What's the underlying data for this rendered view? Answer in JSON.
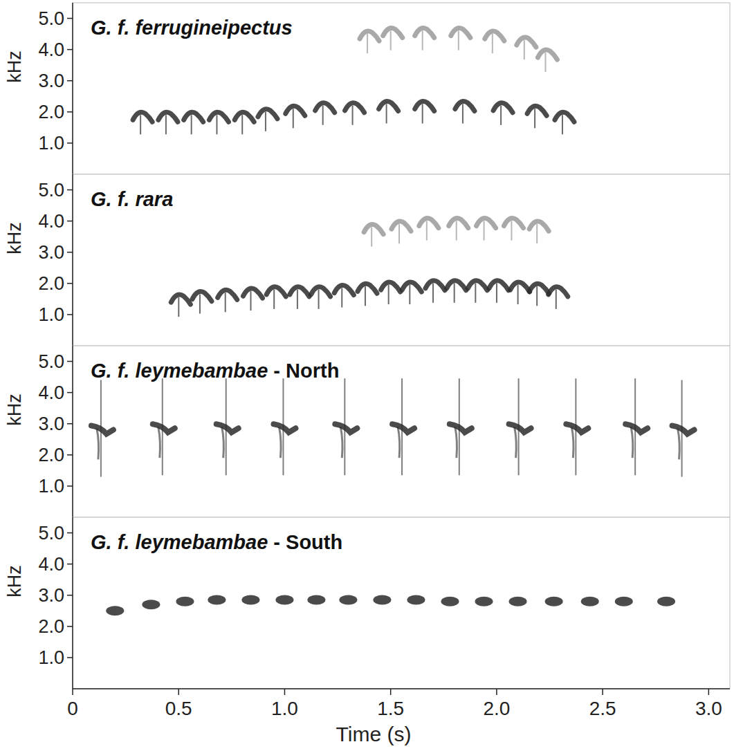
{
  "chart_data": [
    {
      "type": "spectrogram",
      "title": "G. f. ferrugineipectus",
      "y_label": "kHz",
      "xlim": [
        0,
        3.1
      ],
      "ylim": [
        0,
        5.5
      ],
      "tick_labels": "y",
      "yticks": [
        {
          "value": 1,
          "label": "1.0"
        },
        {
          "value": 2,
          "label": "2.0"
        },
        {
          "value": 3,
          "label": "3.0"
        },
        {
          "value": 4,
          "label": "4.0"
        },
        {
          "value": 5,
          "label": "5.0"
        }
      ],
      "series": [
        {
          "color": "#2b2b2b",
          "marker": "arch",
          "x": [
            0.33,
            0.45,
            0.57,
            0.69,
            0.81,
            0.92,
            1.05,
            1.19,
            1.33,
            1.49,
            1.66,
            1.85,
            2.03,
            2.19,
            2.32
          ],
          "values": [
            1.9,
            1.9,
            1.9,
            1.9,
            1.9,
            2.0,
            2.1,
            2.2,
            2.2,
            2.25,
            2.25,
            2.25,
            2.2,
            2.1,
            1.9
          ]
        },
        {
          "color": "#9a9a9a",
          "marker": "arch",
          "x": [
            1.4,
            1.51,
            1.66,
            1.83,
            1.99,
            2.14,
            2.24
          ],
          "values": [
            4.5,
            4.6,
            4.6,
            4.6,
            4.5,
            4.3,
            3.9
          ]
        }
      ]
    },
    {
      "type": "spectrogram",
      "title": "G. f. rara",
      "y_label": "kHz",
      "xlim": [
        0,
        3.1
      ],
      "ylim": [
        0,
        5.5
      ],
      "tick_labels": "y",
      "yticks": [
        {
          "value": 1,
          "label": "1.0"
        },
        {
          "value": 2,
          "label": "2.0"
        },
        {
          "value": 3,
          "label": "3.0"
        },
        {
          "value": 4,
          "label": "4.0"
        },
        {
          "value": 5,
          "label": "5.0"
        }
      ],
      "series": [
        {
          "color": "#2b2b2b",
          "marker": "arch",
          "x": [
            0.51,
            0.61,
            0.73,
            0.85,
            0.96,
            1.07,
            1.17,
            1.28,
            1.39,
            1.5,
            1.6,
            1.71,
            1.81,
            1.91,
            2.01,
            2.11,
            2.2,
            2.29
          ],
          "values": [
            1.55,
            1.65,
            1.7,
            1.75,
            1.8,
            1.8,
            1.8,
            1.85,
            1.9,
            1.95,
            1.95,
            2.0,
            2.0,
            2.0,
            2.0,
            1.95,
            1.9,
            1.8
          ]
        },
        {
          "color": "#9a9a9a",
          "marker": "arch",
          "x": [
            1.42,
            1.55,
            1.68,
            1.82,
            1.95,
            2.08,
            2.2
          ],
          "values": [
            3.8,
            3.9,
            4.0,
            4.0,
            4.0,
            4.0,
            3.9
          ]
        }
      ]
    },
    {
      "type": "spectrogram",
      "title": "G. f. leymebambae - North",
      "y_label": "kHz",
      "xlim": [
        0,
        3.1
      ],
      "ylim": [
        0,
        5.5
      ],
      "tick_labels": "y",
      "yticks": [
        {
          "value": 1,
          "label": "1.0"
        },
        {
          "value": 2,
          "label": "2.0"
        },
        {
          "value": 3,
          "label": "3.0"
        },
        {
          "value": 4,
          "label": "4.0"
        },
        {
          "value": 5,
          "label": "5.0"
        }
      ],
      "series": [
        {
          "color": "#2b2b2b",
          "marker": "tee",
          "x": [
            0.14,
            0.43,
            0.73,
            1.0,
            1.29,
            1.56,
            1.83,
            2.11,
            2.38,
            2.66,
            2.88
          ],
          "values": [
            2.85,
            2.9,
            2.9,
            2.9,
            2.9,
            2.9,
            2.9,
            2.9,
            2.9,
            2.9,
            2.85
          ]
        }
      ]
    },
    {
      "type": "spectrogram",
      "title": "G. f. leymebambae - South",
      "y_label": "kHz",
      "x_label": "Time (s)",
      "xlim": [
        0,
        3.1
      ],
      "ylim": [
        0,
        5.5
      ],
      "xticks": [
        0,
        0.5,
        {
          "value": 1,
          "label": "1.0"
        },
        1.5,
        {
          "value": 2,
          "label": "2.0"
        },
        2.5,
        {
          "value": 3,
          "label": "3.0"
        }
      ],
      "yticks": [
        {
          "value": 1,
          "label": "1.0"
        },
        {
          "value": 2,
          "label": "2.0"
        },
        {
          "value": 3,
          "label": "3.0"
        },
        {
          "value": 4,
          "label": "4.0"
        },
        {
          "value": 5,
          "label": "5.0"
        }
      ],
      "series": [
        {
          "color": "#2b2b2b",
          "marker": "blob",
          "x": [
            0.2,
            0.37,
            0.53,
            0.68,
            0.84,
            1.0,
            1.15,
            1.3,
            1.46,
            1.62,
            1.78,
            1.94,
            2.1,
            2.27,
            2.44,
            2.6,
            2.8
          ],
          "values": [
            2.5,
            2.7,
            2.8,
            2.85,
            2.85,
            2.85,
            2.85,
            2.85,
            2.85,
            2.85,
            2.8,
            2.8,
            2.8,
            2.8,
            2.8,
            2.8,
            2.8
          ]
        }
      ]
    }
  ]
}
